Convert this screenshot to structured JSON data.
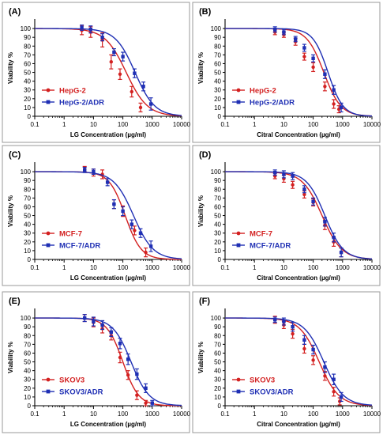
{
  "colors": {
    "red": "#d32020",
    "blue": "#1f2fb4",
    "axis": "#000000",
    "frame": "#9a9a9a"
  },
  "chart_data": [
    {
      "panel": "(A)",
      "type": "line",
      "xscale": "log",
      "xlim": [
        0.1,
        10000
      ],
      "ylim": [
        0,
        110
      ],
      "xticks": [
        "0.1",
        "1",
        "10",
        "100",
        "1000",
        "10000"
      ],
      "yticks": [
        "0",
        "10",
        "20",
        "30",
        "40",
        "50",
        "60",
        "70",
        "80",
        "90",
        "100"
      ],
      "xlabel": "LG Concentration (µg/ml)",
      "ylabel": "Viability %",
      "legend": "lower-left",
      "series": [
        {
          "name": "HepG-2",
          "color": "red",
          "ic50": 130,
          "hill": 1.2,
          "points": [
            {
              "x": 4,
              "y": 98,
              "err": 5
            },
            {
              "x": 8,
              "y": 96,
              "err": 6
            },
            {
              "x": 20,
              "y": 87,
              "err": 8
            },
            {
              "x": 40,
              "y": 62,
              "err": 8
            },
            {
              "x": 80,
              "y": 48,
              "err": 6
            },
            {
              "x": 200,
              "y": 28,
              "err": 6
            },
            {
              "x": 400,
              "y": 10,
              "err": 5
            }
          ]
        },
        {
          "name": "HepG-2/ADR",
          "color": "blue",
          "ic50": 260,
          "hill": 1.3,
          "points": [
            {
              "x": 4,
              "y": 101,
              "err": 3
            },
            {
              "x": 8,
              "y": 99,
              "err": 4
            },
            {
              "x": 20,
              "y": 90,
              "err": 4
            },
            {
              "x": 50,
              "y": 73,
              "err": 4
            },
            {
              "x": 100,
              "y": 68,
              "err": 5
            },
            {
              "x": 250,
              "y": 49,
              "err": 5
            },
            {
              "x": 500,
              "y": 34,
              "err": 5
            },
            {
              "x": 900,
              "y": 14,
              "err": 7
            }
          ]
        }
      ]
    },
    {
      "panel": "(B)",
      "type": "line",
      "xscale": "log",
      "xlim": [
        0.1,
        10000
      ],
      "ylim": [
        0,
        110
      ],
      "xticks": [
        "0.1",
        "1",
        "10",
        "100",
        "1000",
        "10000"
      ],
      "yticks": [
        "0",
        "10",
        "20",
        "30",
        "40",
        "50",
        "60",
        "70",
        "80",
        "90",
        "100"
      ],
      "xlabel": "Citral Concentration (µg/ml)",
      "ylabel": "Viability %",
      "legend": "lower-left",
      "series": [
        {
          "name": "HepG-2",
          "color": "red",
          "ic50": 230,
          "hill": 1.5,
          "points": [
            {
              "x": 5,
              "y": 96,
              "err": 3
            },
            {
              "x": 10,
              "y": 93,
              "err": 3
            },
            {
              "x": 25,
              "y": 85,
              "err": 4
            },
            {
              "x": 50,
              "y": 68,
              "err": 4
            },
            {
              "x": 100,
              "y": 56,
              "err": 5
            },
            {
              "x": 250,
              "y": 34,
              "err": 5
            },
            {
              "x": 500,
              "y": 14,
              "err": 5
            },
            {
              "x": 750,
              "y": 8,
              "err": 4
            }
          ]
        },
        {
          "name": "HepG-2/ADR",
          "color": "blue",
          "ic50": 320,
          "hill": 1.7,
          "points": [
            {
              "x": 5,
              "y": 99,
              "err": 3
            },
            {
              "x": 10,
              "y": 96,
              "err": 3
            },
            {
              "x": 25,
              "y": 88,
              "err": 3
            },
            {
              "x": 50,
              "y": 78,
              "err": 4
            },
            {
              "x": 100,
              "y": 66,
              "err": 4
            },
            {
              "x": 250,
              "y": 48,
              "err": 5
            },
            {
              "x": 500,
              "y": 30,
              "err": 5
            },
            {
              "x": 900,
              "y": 10,
              "err": 5
            }
          ]
        }
      ]
    },
    {
      "panel": "(C)",
      "type": "line",
      "xscale": "log",
      "xlim": [
        0.1,
        10000
      ],
      "ylim": [
        0,
        110
      ],
      "xticks": [
        "0.1",
        "1",
        "10",
        "100",
        "1000",
        "10000"
      ],
      "yticks": [
        "0",
        "10",
        "20",
        "30",
        "40",
        "50",
        "60",
        "70",
        "80",
        "90",
        "100"
      ],
      "xlabel": "LG Concentration (µg/ml)",
      "ylabel": "Viability %",
      "legend": "lower-left",
      "series": [
        {
          "name": "MCF-7",
          "color": "red",
          "ic50": 120,
          "hill": 1.6,
          "points": [
            {
              "x": 5,
              "y": 103,
              "err": 3
            },
            {
              "x": 10,
              "y": 99,
              "err": 4
            },
            {
              "x": 20,
              "y": 97,
              "err": 5
            },
            {
              "x": 50,
              "y": 63,
              "err": 5
            },
            {
              "x": 100,
              "y": 55,
              "err": 6
            },
            {
              "x": 250,
              "y": 33,
              "err": 5
            },
            {
              "x": 600,
              "y": 8,
              "err": 5
            }
          ]
        },
        {
          "name": "MCF-7/ADR",
          "color": "blue",
          "ic50": 230,
          "hill": 1.3,
          "points": [
            {
              "x": 5,
              "y": 102,
              "err": 3
            },
            {
              "x": 10,
              "y": 100,
              "err": 3
            },
            {
              "x": 30,
              "y": 88,
              "err": 4
            },
            {
              "x": 50,
              "y": 63,
              "err": 5
            },
            {
              "x": 100,
              "y": 55,
              "err": 5
            },
            {
              "x": 200,
              "y": 40,
              "err": 5
            },
            {
              "x": 400,
              "y": 30,
              "err": 5
            },
            {
              "x": 900,
              "y": 15,
              "err": 6
            }
          ]
        }
      ]
    },
    {
      "panel": "(D)",
      "type": "line",
      "xscale": "log",
      "xlim": [
        0.1,
        10000
      ],
      "ylim": [
        0,
        110
      ],
      "xticks": [
        "0.1",
        "1",
        "10",
        "100",
        "1000",
        "10000"
      ],
      "yticks": [
        "0",
        "10",
        "20",
        "30",
        "40",
        "50",
        "60",
        "70",
        "80",
        "90",
        "100"
      ],
      "xlabel": "Citral Concentration (µg/ml)",
      "ylabel": "Viability %",
      "legend": "lower-left",
      "series": [
        {
          "name": "MCF-7",
          "color": "red",
          "ic50": 200,
          "hill": 1.3,
          "points": [
            {
              "x": 5,
              "y": 95,
              "err": 3
            },
            {
              "x": 10,
              "y": 92,
              "err": 4
            },
            {
              "x": 20,
              "y": 85,
              "err": 4
            },
            {
              "x": 50,
              "y": 74,
              "err": 4
            },
            {
              "x": 100,
              "y": 65,
              "err": 4
            },
            {
              "x": 250,
              "y": 39,
              "err": 5
            },
            {
              "x": 500,
              "y": 20,
              "err": 5
            },
            {
              "x": 900,
              "y": 8,
              "err": 5
            }
          ]
        },
        {
          "name": "MCF-7/ADR",
          "color": "blue",
          "ic50": 250,
          "hill": 1.4,
          "points": [
            {
              "x": 5,
              "y": 99,
              "err": 3
            },
            {
              "x": 10,
              "y": 97,
              "err": 4
            },
            {
              "x": 20,
              "y": 95,
              "err": 4
            },
            {
              "x": 50,
              "y": 80,
              "err": 4
            },
            {
              "x": 100,
              "y": 66,
              "err": 4
            },
            {
              "x": 250,
              "y": 43,
              "err": 5
            },
            {
              "x": 500,
              "y": 25,
              "err": 5
            },
            {
              "x": 900,
              "y": 8,
              "err": 5
            }
          ]
        }
      ]
    },
    {
      "panel": "(E)",
      "type": "line",
      "xscale": "log",
      "xlim": [
        0.1,
        10000
      ],
      "ylim": [
        0,
        110
      ],
      "xticks": [
        "0.1",
        "1",
        "10",
        "100",
        "1000",
        "10000"
      ],
      "yticks": [
        "0",
        "10",
        "20",
        "30",
        "40",
        "50",
        "60",
        "70",
        "80",
        "90",
        "100"
      ],
      "xlabel": "LG Concentration (µg/ml)",
      "ylabel": "Viability %",
      "legend": "lower-left",
      "series": [
        {
          "name": "SKOV3",
          "color": "red",
          "ic50": 100,
          "hill": 1.6,
          "points": [
            {
              "x": 5,
              "y": 100,
              "err": 4
            },
            {
              "x": 10,
              "y": 95,
              "err": 5
            },
            {
              "x": 20,
              "y": 88,
              "err": 5
            },
            {
              "x": 40,
              "y": 80,
              "err": 5
            },
            {
              "x": 80,
              "y": 55,
              "err": 6
            },
            {
              "x": 150,
              "y": 35,
              "err": 5
            },
            {
              "x": 300,
              "y": 12,
              "err": 5
            },
            {
              "x": 600,
              "y": 3,
              "err": 3
            }
          ]
        },
        {
          "name": "SKOV3/ADR",
          "color": "blue",
          "ic50": 190,
          "hill": 1.4,
          "points": [
            {
              "x": 5,
              "y": 100,
              "err": 4
            },
            {
              "x": 10,
              "y": 96,
              "err": 5
            },
            {
              "x": 20,
              "y": 92,
              "err": 5
            },
            {
              "x": 40,
              "y": 84,
              "err": 5
            },
            {
              "x": 80,
              "y": 71,
              "err": 6
            },
            {
              "x": 150,
              "y": 53,
              "err": 6
            },
            {
              "x": 300,
              "y": 36,
              "err": 6
            },
            {
              "x": 600,
              "y": 20,
              "err": 5
            },
            {
              "x": 1000,
              "y": 3,
              "err": 3
            }
          ]
        }
      ]
    },
    {
      "panel": "(F)",
      "type": "line",
      "xscale": "log",
      "xlim": [
        0.1,
        10000
      ],
      "ylim": [
        0,
        110
      ],
      "xticks": [
        "0.1",
        "1",
        "10",
        "100",
        "1000",
        "10000"
      ],
      "yticks": [
        "0",
        "10",
        "20",
        "30",
        "40",
        "50",
        "60",
        "70",
        "80",
        "90",
        "100"
      ],
      "xlabel": "Citral Concentration (µg/ml)",
      "ylabel": "Viability %",
      "legend": "lower-left",
      "series": [
        {
          "name": "SKOV3",
          "color": "red",
          "ic50": 160,
          "hill": 1.3,
          "points": [
            {
              "x": 5,
              "y": 98,
              "err": 4
            },
            {
              "x": 10,
              "y": 92,
              "err": 4
            },
            {
              "x": 20,
              "y": 82,
              "err": 5
            },
            {
              "x": 50,
              "y": 65,
              "err": 5
            },
            {
              "x": 100,
              "y": 52,
              "err": 5
            },
            {
              "x": 250,
              "y": 34,
              "err": 5
            },
            {
              "x": 500,
              "y": 16,
              "err": 5
            },
            {
              "x": 800,
              "y": 5,
              "err": 4
            }
          ]
        },
        {
          "name": "SKOV3/ADR",
          "color": "blue",
          "ic50": 230,
          "hill": 1.3,
          "points": [
            {
              "x": 5,
              "y": 98,
              "err": 3
            },
            {
              "x": 10,
              "y": 96,
              "err": 4
            },
            {
              "x": 20,
              "y": 90,
              "err": 5
            },
            {
              "x": 50,
              "y": 75,
              "err": 5
            },
            {
              "x": 100,
              "y": 64,
              "err": 5
            },
            {
              "x": 250,
              "y": 44,
              "err": 6
            },
            {
              "x": 500,
              "y": 30,
              "err": 6
            },
            {
              "x": 900,
              "y": 10,
              "err": 5
            }
          ]
        }
      ]
    }
  ]
}
